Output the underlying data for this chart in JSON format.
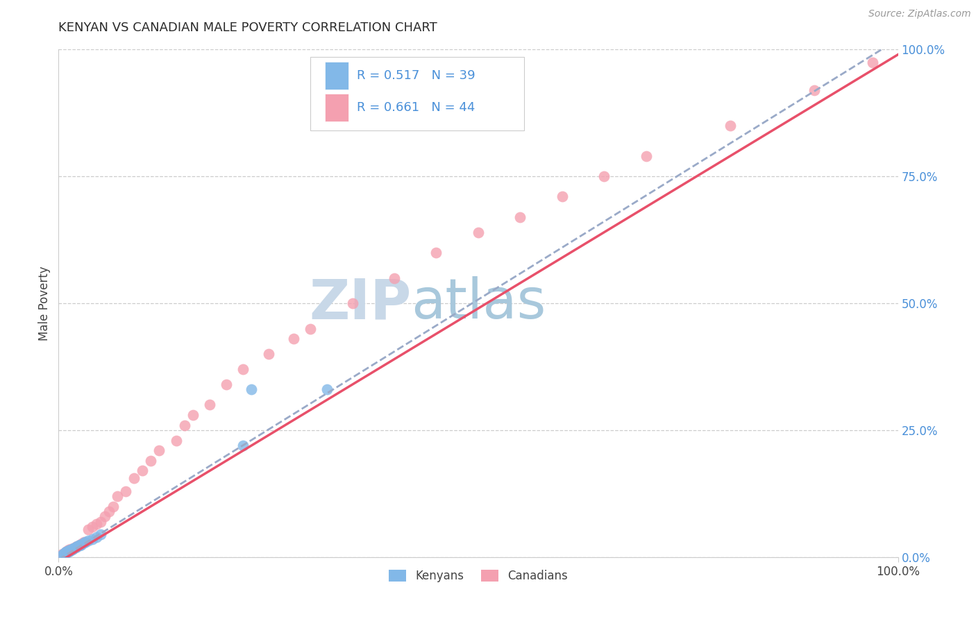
{
  "title": "KENYAN VS CANADIAN MALE POVERTY CORRELATION CHART",
  "source_text": "Source: ZipAtlas.com",
  "ylabel": "Male Poverty",
  "xlim": [
    0.0,
    1.0
  ],
  "ylim": [
    0.0,
    1.0
  ],
  "xtick_positions": [
    0.0,
    1.0
  ],
  "xtick_labels": [
    "0.0%",
    "100.0%"
  ],
  "ytick_right_values": [
    0.0,
    0.25,
    0.5,
    0.75,
    1.0
  ],
  "ytick_right_labels": [
    "0.0%",
    "25.0%",
    "50.0%",
    "75.0%",
    "100.0%"
  ],
  "legend_r_kenya": "R = 0.517",
  "legend_n_kenya": "N = 39",
  "legend_r_canada": "R = 0.661",
  "legend_n_canada": "N = 44",
  "legend_label_kenya": "Kenyans",
  "legend_label_canada": "Canadians",
  "scatter_color_kenya": "#82B8E8",
  "scatter_color_canada": "#F4A0B0",
  "trendline_color_kenya": "#9AAAC8",
  "trendline_color_canada": "#E8506A",
  "title_color": "#2B2B2B",
  "axis_label_color": "#444444",
  "right_axis_color": "#4A90D9",
  "legend_text_color": "#4A90D9",
  "watermark_zip_color": "#C8D8E8",
  "watermark_atlas_color": "#A8C8DC",
  "background_color": "#FFFFFF",
  "grid_color": "#CCCCCC",
  "kenya_x": [
    0.005,
    0.006,
    0.007,
    0.007,
    0.008,
    0.008,
    0.009,
    0.009,
    0.01,
    0.01,
    0.01,
    0.011,
    0.011,
    0.012,
    0.012,
    0.013,
    0.013,
    0.014,
    0.015,
    0.015,
    0.016,
    0.017,
    0.018,
    0.018,
    0.02,
    0.021,
    0.022,
    0.025,
    0.025,
    0.027,
    0.03,
    0.032,
    0.035,
    0.04,
    0.045,
    0.05,
    0.22,
    0.23,
    0.32
  ],
  "kenya_y": [
    0.005,
    0.006,
    0.007,
    0.008,
    0.007,
    0.009,
    0.008,
    0.01,
    0.009,
    0.01,
    0.011,
    0.01,
    0.012,
    0.011,
    0.013,
    0.012,
    0.014,
    0.013,
    0.014,
    0.015,
    0.015,
    0.016,
    0.017,
    0.018,
    0.019,
    0.02,
    0.021,
    0.023,
    0.024,
    0.025,
    0.028,
    0.03,
    0.032,
    0.035,
    0.04,
    0.045,
    0.22,
    0.33,
    0.33
  ],
  "canada_x": [
    0.005,
    0.008,
    0.01,
    0.012,
    0.015,
    0.018,
    0.02,
    0.022,
    0.025,
    0.028,
    0.03,
    0.035,
    0.04,
    0.045,
    0.05,
    0.055,
    0.06,
    0.065,
    0.07,
    0.08,
    0.09,
    0.1,
    0.11,
    0.12,
    0.14,
    0.15,
    0.16,
    0.18,
    0.2,
    0.22,
    0.25,
    0.28,
    0.3,
    0.35,
    0.4,
    0.45,
    0.5,
    0.55,
    0.6,
    0.65,
    0.7,
    0.8,
    0.9,
    0.97
  ],
  "canada_y": [
    0.006,
    0.009,
    0.012,
    0.015,
    0.016,
    0.018,
    0.02,
    0.022,
    0.025,
    0.027,
    0.03,
    0.055,
    0.06,
    0.065,
    0.07,
    0.08,
    0.09,
    0.1,
    0.12,
    0.13,
    0.155,
    0.17,
    0.19,
    0.21,
    0.23,
    0.26,
    0.28,
    0.3,
    0.34,
    0.37,
    0.4,
    0.43,
    0.45,
    0.5,
    0.55,
    0.6,
    0.64,
    0.67,
    0.71,
    0.75,
    0.79,
    0.85,
    0.92,
    0.975
  ],
  "trendline_kenya_x0": 0.0,
  "trendline_kenya_y0": -0.005,
  "trendline_kenya_x1": 1.0,
  "trendline_kenya_y1": 1.02,
  "trendline_canada_x0": 0.0,
  "trendline_canada_y0": -0.01,
  "trendline_canada_x1": 1.0,
  "trendline_canada_y1": 0.99
}
